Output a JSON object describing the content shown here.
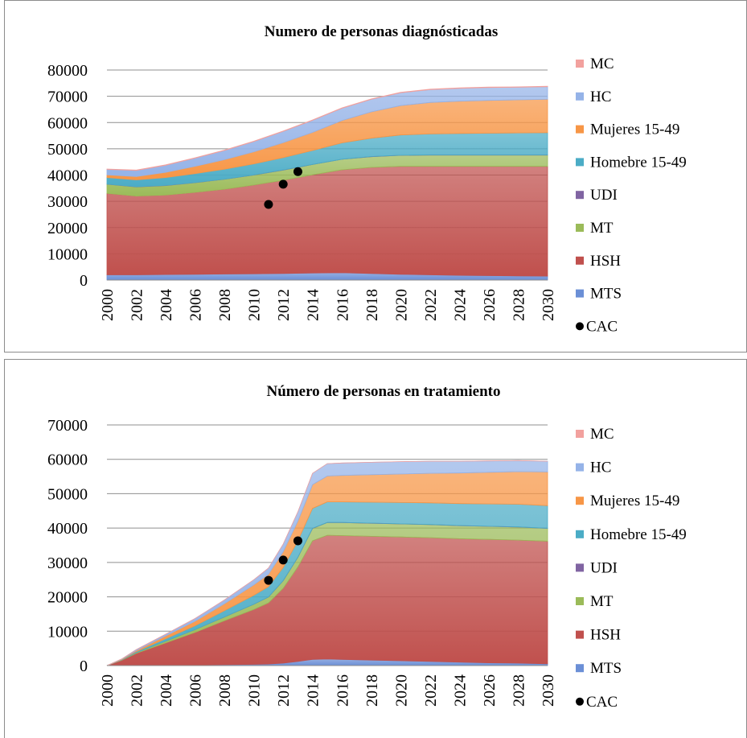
{
  "chart_data": [
    {
      "type": "area",
      "stacked": true,
      "title": "Numero de personas diagnósticadas",
      "xlabel": "",
      "ylabel": "",
      "ylim": [
        0,
        80000
      ],
      "yticks": [
        0,
        10000,
        20000,
        30000,
        40000,
        50000,
        60000,
        70000,
        80000
      ],
      "xticks": [
        "2000",
        "2002",
        "2004",
        "2006",
        "2008",
        "2010",
        "2012",
        "2014",
        "2016",
        "2018",
        "2020",
        "2022",
        "2024",
        "2026",
        "2028",
        "2030"
      ],
      "x": [
        2000,
        2002,
        2004,
        2006,
        2008,
        2010,
        2012,
        2014,
        2016,
        2018,
        2020,
        2022,
        2024,
        2026,
        2028,
        2030
      ],
      "grid": "horizontal",
      "legend_position": "right",
      "series": [
        {
          "name": "MTS",
          "color": "#6b8fd6",
          "values": [
            2000,
            2000,
            2100,
            2200,
            2300,
            2400,
            2500,
            2700,
            2800,
            2500,
            2200,
            2000,
            1800,
            1700,
            1600,
            1500
          ]
        },
        {
          "name": "HSH",
          "color": "#c0504d",
          "values": [
            31000,
            30000,
            30300,
            31200,
            32300,
            33800,
            35500,
            37400,
            39200,
            40400,
            41100,
            41300,
            41500,
            41600,
            41700,
            41800
          ]
        },
        {
          "name": "MT",
          "color": "#9bbb59",
          "values": [
            3500,
            3500,
            3600,
            3700,
            3800,
            3800,
            3900,
            3900,
            4000,
            4100,
            4200,
            4300,
            4300,
            4300,
            4300,
            4300
          ]
        },
        {
          "name": "UDI",
          "color": "#8064a2",
          "values": [
            50,
            50,
            50,
            50,
            50,
            50,
            50,
            50,
            50,
            50,
            50,
            50,
            50,
            50,
            50,
            50
          ]
        },
        {
          "name": "Homebre 15-49",
          "color": "#4bacc6",
          "values": [
            2500,
            2600,
            3000,
            3400,
            3800,
            4200,
            4700,
            5300,
            6200,
            7000,
            7700,
            8000,
            8200,
            8300,
            8400,
            8500
          ]
        },
        {
          "name": "Mujeres 15-49",
          "color": "#f79646",
          "values": [
            1000,
            1300,
            2000,
            2800,
            3600,
            4600,
            5700,
            6900,
            8500,
            10000,
            11200,
            12000,
            12300,
            12500,
            12600,
            12700
          ]
        },
        {
          "name": "HC",
          "color": "#95b3e8",
          "values": [
            2100,
            2300,
            2700,
            3100,
            3500,
            3900,
            4300,
            4600,
            4700,
            4800,
            4900,
            4900,
            4900,
            4900,
            4800,
            4800
          ]
        },
        {
          "name": "MC",
          "color": "#f2a19e",
          "values": [
            150,
            150,
            150,
            150,
            150,
            150,
            150,
            150,
            150,
            150,
            150,
            150,
            150,
            150,
            150,
            150
          ]
        }
      ],
      "points": {
        "name": "CAC",
        "color": "#000000",
        "x": [
          2011,
          2012,
          2013
        ],
        "y": [
          28800,
          36500,
          41300
        ]
      }
    },
    {
      "type": "area",
      "stacked": true,
      "title": "Número de personas en tratamiento",
      "xlabel": "",
      "ylabel": "",
      "ylim": [
        0,
        70000
      ],
      "yticks": [
        0,
        10000,
        20000,
        30000,
        40000,
        50000,
        60000,
        70000
      ],
      "xticks": [
        "2000",
        "2002",
        "2004",
        "2006",
        "2008",
        "2010",
        "2012",
        "2014",
        "2016",
        "2018",
        "2020",
        "2022",
        "2024",
        "2026",
        "2028",
        "2030"
      ],
      "x": [
        2000,
        2001,
        2002,
        2004,
        2006,
        2008,
        2010,
        2011,
        2012,
        2013,
        2014,
        2015,
        2016,
        2018,
        2020,
        2022,
        2024,
        2026,
        2028,
        2030
      ],
      "grid": "horizontal",
      "legend_position": "right",
      "series": [
        {
          "name": "MTS",
          "color": "#6b8fd6",
          "values": [
            0,
            30,
            60,
            120,
            180,
            250,
            350,
            450,
            700,
            1200,
            1800,
            1900,
            1800,
            1600,
            1400,
            1200,
            1000,
            800,
            700,
            500
          ]
        },
        {
          "name": "HSH",
          "color": "#c0504d",
          "values": [
            0,
            1500,
            3500,
            6500,
            9500,
            12800,
            16000,
            17800,
            21800,
            27500,
            34500,
            36000,
            36000,
            36000,
            36000,
            36000,
            35900,
            35900,
            35800,
            35700
          ]
        },
        {
          "name": "MT",
          "color": "#9bbb59",
          "values": [
            0,
            100,
            200,
            500,
            800,
            1100,
            1500,
            1700,
            2200,
            2800,
            3600,
            3700,
            3800,
            3800,
            3800,
            3800,
            3800,
            3800,
            3800,
            3700
          ]
        },
        {
          "name": "UDI",
          "color": "#8064a2",
          "values": [
            0,
            0,
            0,
            10,
            10,
            20,
            20,
            20,
            30,
            30,
            30,
            30,
            30,
            30,
            30,
            30,
            30,
            30,
            30,
            30
          ]
        },
        {
          "name": "Homebre 15-49",
          "color": "#4bacc6",
          "values": [
            0,
            100,
            300,
            700,
            1100,
            1800,
            2600,
            3000,
            3800,
            4800,
            5800,
            6000,
            6000,
            6100,
            6200,
            6300,
            6400,
            6500,
            6600,
            6600
          ]
        },
        {
          "name": "Mujeres 15-49",
          "color": "#f79646",
          "values": [
            0,
            100,
            300,
            800,
            1300,
            2000,
            3000,
            3600,
            4600,
            5700,
            6900,
            7500,
            7700,
            8000,
            8300,
            8600,
            8900,
            9200,
            9500,
            9800
          ]
        },
        {
          "name": "HC",
          "color": "#95b3e8",
          "values": [
            0,
            100,
            300,
            500,
            800,
            1100,
            1500,
            1800,
            2200,
            2700,
            3300,
            3600,
            3600,
            3600,
            3600,
            3500,
            3400,
            3300,
            3200,
            3100
          ]
        },
        {
          "name": "MC",
          "color": "#f2a19e",
          "values": [
            0,
            0,
            0,
            0,
            0,
            0,
            0,
            0,
            0,
            0,
            0,
            0,
            0,
            0,
            0,
            0,
            0,
            0,
            0,
            0
          ]
        }
      ],
      "points": {
        "name": "CAC",
        "color": "#000000",
        "x": [
          2011,
          2012,
          2013
        ],
        "y": [
          24800,
          30700,
          36300
        ]
      }
    }
  ]
}
